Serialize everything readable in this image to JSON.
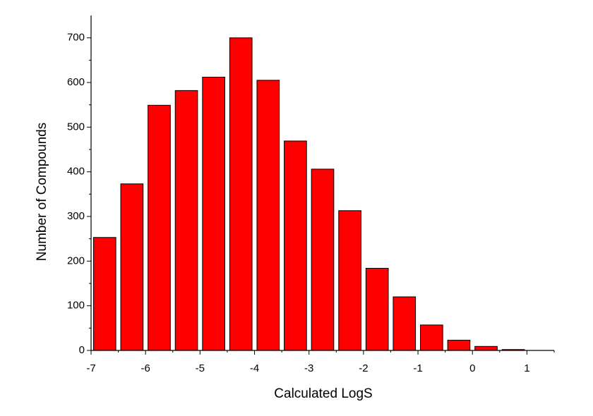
{
  "chart_data": {
    "type": "histogram",
    "x_label": "Calculated LogS",
    "y_label": "Number of Compounds",
    "bins": [
      -7,
      -6.5,
      -6,
      -5.5,
      -5,
      -4.5,
      -4,
      -3.5,
      -3,
      -2.5,
      -2,
      -1.5,
      -1,
      -0.5,
      0,
      0.5,
      1
    ],
    "values": [
      253,
      373,
      549,
      582,
      612,
      700,
      605,
      469,
      406,
      313,
      184,
      120,
      57,
      23,
      9,
      2
    ],
    "color": "#ff0000",
    "xlim": [
      -7,
      1.5
    ],
    "xticks": [
      -7,
      -6,
      -5,
      -4,
      -3,
      -2,
      -1,
      0,
      1
    ],
    "ylim": [
      0,
      750
    ],
    "yticks": [
      0,
      100,
      200,
      300,
      400,
      500,
      600,
      700
    ]
  }
}
